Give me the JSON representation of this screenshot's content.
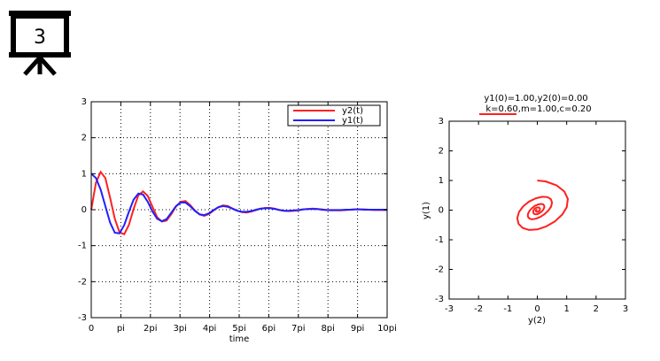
{
  "slide_icon": {
    "number": "3",
    "icon": "presentation-board-icon"
  },
  "chart_data": [
    {
      "type": "line",
      "xlabel": "time",
      "ylabel": "",
      "xlim": [
        0,
        31.4159
      ],
      "ylim": [
        -3,
        3
      ],
      "x_ticks": [
        "0",
        "pi",
        "2pi",
        "3pi",
        "4pi",
        "5pi",
        "6pi",
        "7pi",
        "8pi",
        "9pi",
        "10pi"
      ],
      "y_ticks": [
        "-3",
        "-2",
        "-1",
        "0",
        "1",
        "2",
        "3"
      ],
      "grid": true,
      "legend": "top-right",
      "series": [
        {
          "name": "y2(t)",
          "color": "#ff2020",
          "x": [
            0,
            0.5,
            1,
            1.5,
            2,
            2.5,
            3,
            3.5,
            4,
            4.5,
            5,
            5.5,
            6,
            6.5,
            7,
            7.5,
            8,
            8.5,
            9,
            9.5,
            10,
            10.5,
            11,
            11.5,
            12,
            12.5,
            13,
            13.5,
            14,
            14.5,
            15,
            15.5,
            16,
            16.5,
            17,
            17.5,
            18,
            18.5,
            19,
            19.5,
            20,
            20.5,
            21,
            21.5,
            22,
            22.5,
            23,
            23.5,
            24,
            24.5,
            25,
            25.5,
            26,
            26.5,
            27,
            27.5,
            28,
            28.5,
            29,
            29.5,
            30,
            30.5,
            31,
            31.4
          ],
          "values": [
            0.0,
            0.75,
            1.05,
            0.88,
            0.33,
            -0.25,
            -0.63,
            -0.68,
            -0.42,
            0.02,
            0.4,
            0.51,
            0.38,
            0.08,
            -0.21,
            -0.33,
            -0.3,
            -0.12,
            0.09,
            0.22,
            0.24,
            0.13,
            -0.02,
            -0.13,
            -0.17,
            -0.12,
            -0.02,
            0.07,
            0.12,
            0.1,
            0.03,
            -0.03,
            -0.07,
            -0.08,
            -0.05,
            -0.01,
            0.03,
            0.05,
            0.05,
            0.03,
            -0.01,
            -0.03,
            -0.04,
            -0.03,
            -0.02,
            0.01,
            0.02,
            0.03,
            0.02,
            0.01,
            -0.01,
            -0.02,
            -0.02,
            -0.02,
            -0.01,
            0.0,
            0.01,
            0.01,
            0.01,
            0.0,
            -0.01,
            -0.01,
            -0.01,
            -0.01
          ]
        },
        {
          "name": "y1(t)",
          "color": "#2020ff",
          "x": [
            0,
            0.5,
            1,
            1.5,
            2,
            2.5,
            3,
            3.5,
            4,
            4.5,
            5,
            5.5,
            6,
            6.5,
            7,
            7.5,
            8,
            8.5,
            9,
            9.5,
            10,
            10.5,
            11,
            11.5,
            12,
            12.5,
            13,
            13.5,
            14,
            14.5,
            15,
            15.5,
            16,
            16.5,
            17,
            17.5,
            18,
            18.5,
            19,
            19.5,
            20,
            20.5,
            21,
            21.5,
            22,
            22.5,
            23,
            23.5,
            24,
            24.5,
            25,
            25.5,
            26,
            26.5,
            27,
            27.5,
            28,
            28.5,
            29,
            29.5,
            30,
            30.5,
            31,
            31.4
          ],
          "values": [
            1.0,
            0.88,
            0.56,
            0.1,
            -0.36,
            -0.64,
            -0.66,
            -0.43,
            -0.06,
            0.28,
            0.45,
            0.42,
            0.22,
            -0.05,
            -0.25,
            -0.32,
            -0.26,
            -0.08,
            0.1,
            0.2,
            0.2,
            0.1,
            -0.03,
            -0.13,
            -0.15,
            -0.1,
            -0.01,
            0.07,
            0.1,
            0.08,
            0.03,
            -0.03,
            -0.06,
            -0.06,
            -0.04,
            0.0,
            0.03,
            0.04,
            0.04,
            0.02,
            -0.01,
            -0.03,
            -0.03,
            -0.02,
            -0.01,
            0.01,
            0.02,
            0.02,
            0.02,
            0.0,
            -0.01,
            -0.01,
            -0.01,
            -0.01,
            0.0,
            0.0,
            0.01,
            0.01,
            0.0,
            0.0,
            0.0,
            0.0,
            0.0,
            0.0
          ]
        }
      ]
    },
    {
      "type": "line",
      "title": "y1(0)=1.00,y2(0)=0.00",
      "subtitle": "k=0.60,m=1.00,c=0.20",
      "xlabel": "y(2)",
      "ylabel": "y(1)",
      "xlim": [
        -3,
        3
      ],
      "ylim": [
        -3,
        3
      ],
      "x_ticks": [
        "-3",
        "-2",
        "-1",
        "0",
        "1",
        "2",
        "3"
      ],
      "y_ticks": [
        "-3",
        "-2",
        "-1",
        "0",
        "1",
        "2",
        "3"
      ],
      "grid": false,
      "series": [
        {
          "color": "#ff2020",
          "x": [
            0.0,
            0.28,
            0.65,
            0.92,
            1.04,
            1.0,
            0.85,
            0.6,
            0.3,
            0.0,
            -0.28,
            -0.5,
            -0.64,
            -0.68,
            -0.62,
            -0.48,
            -0.28,
            -0.05,
            0.17,
            0.35,
            0.46,
            0.5,
            0.47,
            0.38,
            0.25,
            0.1,
            -0.05,
            -0.18,
            -0.27,
            -0.32,
            -0.32,
            -0.27,
            -0.19,
            -0.09,
            0.02,
            0.12,
            0.19,
            0.23,
            0.24,
            0.21,
            0.16,
            0.09,
            0.02,
            -0.05,
            -0.1,
            -0.13,
            -0.14,
            -0.13,
            -0.1,
            -0.06,
            -0.01,
            0.04,
            0.07,
            0.09,
            0.09,
            0.08,
            0.05,
            0.02,
            -0.01,
            -0.03,
            -0.05,
            -0.05,
            -0.04,
            -0.02,
            0.0
          ],
          "values": [
            1.0,
            0.97,
            0.84,
            0.63,
            0.38,
            0.1,
            -0.15,
            -0.38,
            -0.55,
            -0.65,
            -0.67,
            -0.6,
            -0.46,
            -0.27,
            -0.06,
            0.13,
            0.29,
            0.4,
            0.45,
            0.44,
            0.37,
            0.26,
            0.12,
            -0.01,
            -0.13,
            -0.23,
            -0.29,
            -0.31,
            -0.28,
            -0.22,
            -0.13,
            -0.03,
            0.06,
            0.14,
            0.19,
            0.21,
            0.2,
            0.16,
            0.1,
            0.03,
            -0.04,
            -0.09,
            -0.13,
            -0.14,
            -0.13,
            -0.1,
            -0.06,
            -0.01,
            0.04,
            0.07,
            0.09,
            0.09,
            0.08,
            0.05,
            0.02,
            -0.01,
            -0.04,
            -0.05,
            -0.06,
            -0.05,
            -0.04,
            -0.02,
            0.0,
            0.01,
            0.0
          ]
        }
      ]
    }
  ]
}
